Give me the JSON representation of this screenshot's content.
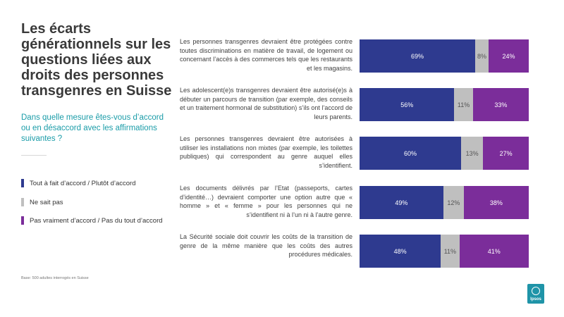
{
  "title": "Les écarts générationnels sur les questions liées aux droits des personnes transgenres en Suisse",
  "subtitle": "Dans quelle mesure êtes-vous d’accord ou en désaccord avec les affirmations suivantes ?",
  "legend": [
    {
      "label": "Tout à fait d’accord / Plutôt d’accord",
      "color": "#2e3a8f"
    },
    {
      "label": "Ne sait pas",
      "color": "#bfbfbf"
    },
    {
      "label": "Pas vraiment d’accord / Pas du tout d’accord",
      "color": "#7b2d9a"
    }
  ],
  "footnote": "Base: 500 adultes interrogés en Suisse",
  "logo_text": "Ipsos",
  "chart_data": {
    "type": "bar",
    "orientation": "horizontal-stacked-100",
    "categories": [
      "Les personnes transgenres devraient être protégées contre toutes discriminations en matière de travail, de logement ou concernant l’accès à des commerces tels que les restaurants et les magasins.",
      "Les adolescent(e)s transgenres devraient être autorisé(e)s à débuter un parcours de transition (par exemple, des conseils et un traitement hormonal de substitution) s’ils ont l’accord de leurs parents.",
      "Les personnes transgenres devraient être autorisées à utiliser les installations non mixtes (par exemple, les toilettes publiques) qui correspondent au genre auquel elles s’identifient.",
      "Les documents délivrés par l’Etat (passeports, cartes d’identité…) devraient comporter une option autre que « homme » et « femme » pour les personnes qui ne s’identifient ni à l’un ni à l’autre genre.",
      "La Sécurité sociale doit couvrir les coûts de la transition de genre de la même manière que les coûts des autres procédures médicales."
    ],
    "series": [
      {
        "name": "Tout à fait d’accord / Plutôt d’accord",
        "color": "#2e3a8f",
        "values": [
          69,
          56,
          60,
          49,
          48
        ],
        "labels": [
          "69%",
          "56%",
          "60%",
          "49%",
          "48%"
        ]
      },
      {
        "name": "Ne sait pas",
        "color": "#bfbfbf",
        "values": [
          8,
          11,
          13,
          12,
          11
        ],
        "labels": [
          "8%",
          "11%",
          "13%",
          "12%",
          "11%"
        ]
      },
      {
        "name": "Pas vraiment d’accord / Pas du tout d’accord",
        "color": "#7b2d9a",
        "values": [
          24,
          33,
          27,
          38,
          41
        ],
        "labels": [
          "24%",
          "33%",
          "27%",
          "38%",
          "41%"
        ]
      }
    ]
  }
}
